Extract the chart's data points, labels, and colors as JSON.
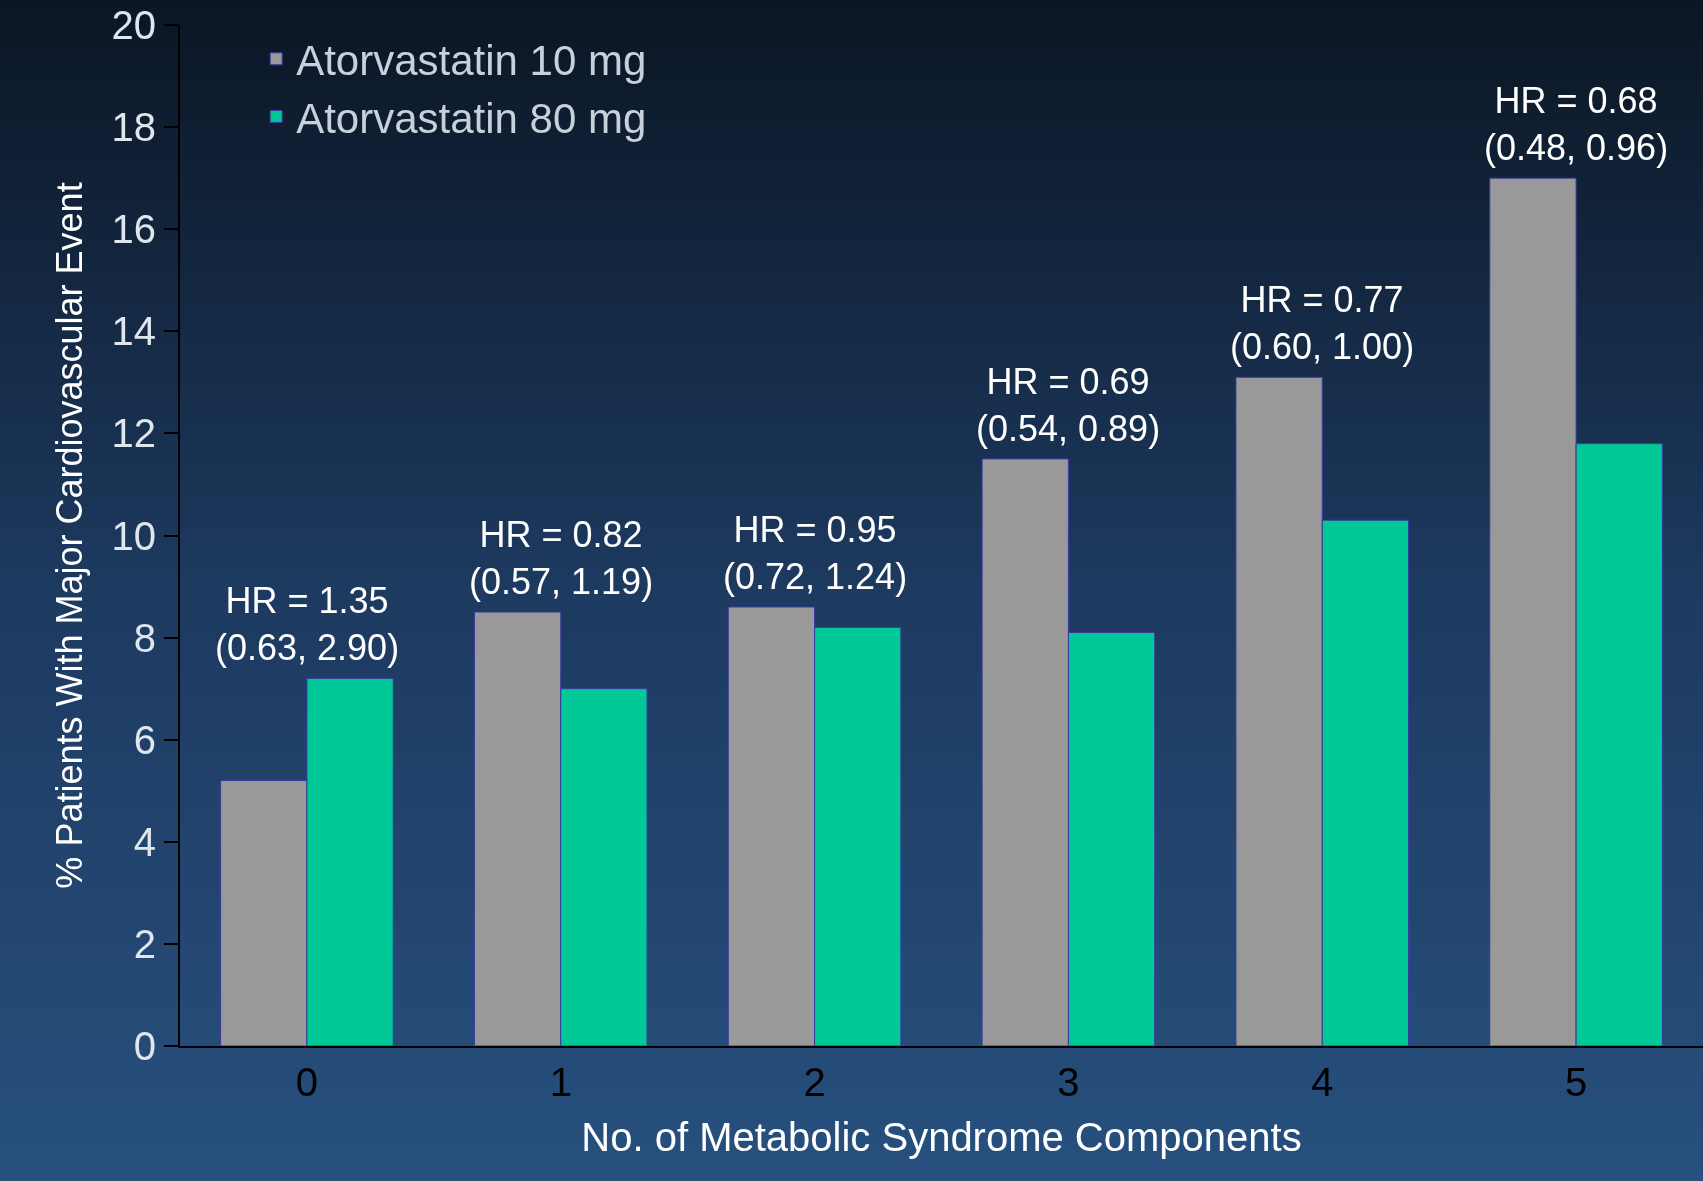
{
  "chart_data": {
    "type": "bar",
    "xlabel": "No. of Metabolic Syndrome Components",
    "ylabel": "% Patients With Major Cardiovascular Event",
    "categories": [
      "0",
      "1",
      "2",
      "3",
      "4",
      "5"
    ],
    "series": [
      {
        "name": "Atorvastatin 10 mg",
        "color": "#999999",
        "values": [
          5.2,
          8.5,
          8.6,
          11.5,
          13.1,
          17.0
        ]
      },
      {
        "name": "Atorvastatin 80 mg",
        "color": "#00c896",
        "values": [
          7.2,
          7.0,
          8.2,
          8.1,
          10.3,
          11.8
        ]
      }
    ],
    "ylim": [
      0,
      20
    ],
    "yticks": [
      0,
      2,
      4,
      6,
      8,
      10,
      12,
      14,
      16,
      18,
      20
    ],
    "grid": false,
    "legend": "top left",
    "annotations": [
      {
        "text": "HR = 1.35\n(0.63, 2.90)",
        "x": "0",
        "y": 7.2
      },
      {
        "text": "HR = 0.82\n(0.57, 1.19)",
        "x": "1",
        "y": 8.5
      },
      {
        "text": "HR = 0.95\n(0.72, 1.24)",
        "x": "2",
        "y": 8.6
      },
      {
        "text": "HR = 0.69\n(0.54, 0.89)",
        "x": "3",
        "y": 11.5
      },
      {
        "text": "HR = 0.77\n(0.60, 1.00)",
        "x": "4",
        "y": 13.1
      },
      {
        "text": "HR = 0.68\n(0.48, 0.96)",
        "x": "5",
        "y": 17.0
      }
    ]
  }
}
